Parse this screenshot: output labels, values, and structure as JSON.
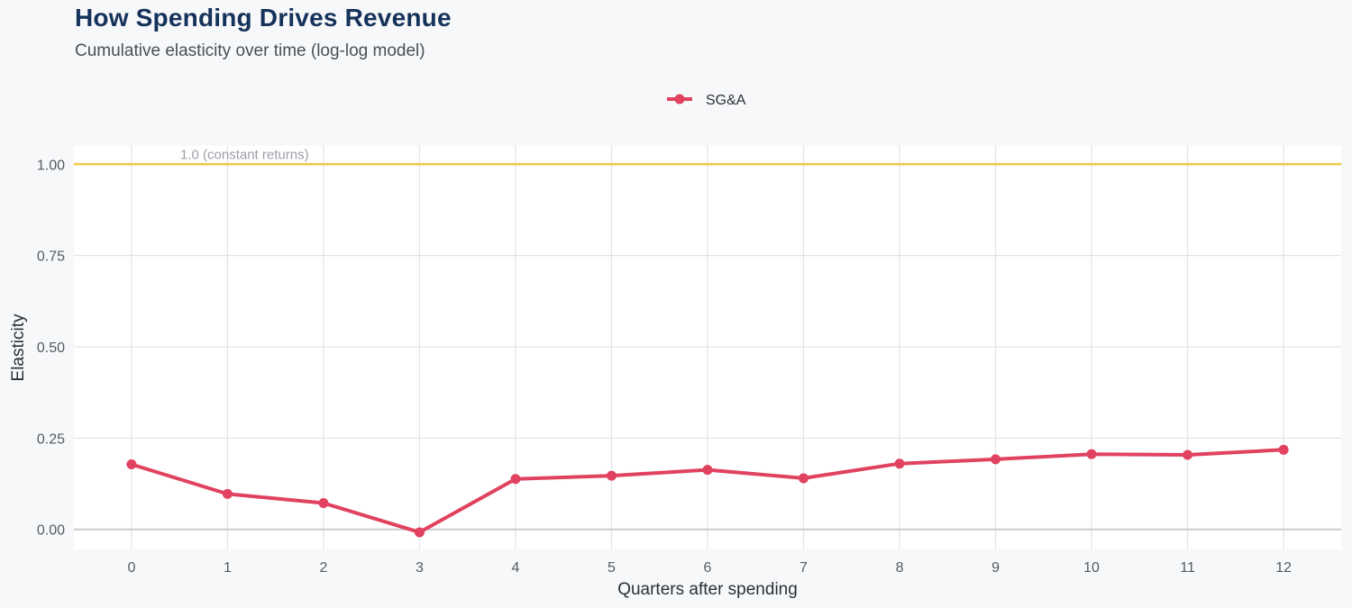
{
  "header": {
    "title": "How Spending Drives Revenue",
    "subtitle": "Cumulative elasticity over time (log-log model)"
  },
  "colors": {
    "series": "#e0425f",
    "reference": "#f2c94c",
    "title": "#15325a"
  },
  "chart_data": {
    "type": "line",
    "title": "How Spending Drives Revenue",
    "subtitle": "Cumulative elasticity over time (log-log model)",
    "xlabel": "Quarters after spending",
    "ylabel": "Elasticity",
    "x": [
      0,
      1,
      2,
      3,
      4,
      5,
      6,
      7,
      8,
      9,
      10,
      11,
      12
    ],
    "x_tick_labels": [
      "0",
      "1",
      "2",
      "3",
      "4",
      "5",
      "6",
      "7",
      "8",
      "9",
      "10",
      "11",
      "12"
    ],
    "y_ticks": [
      0.0,
      0.25,
      0.5,
      0.75,
      1.0
    ],
    "y_tick_labels": [
      "0.00",
      "0.25",
      "0.50",
      "0.75",
      "1.00"
    ],
    "ylim": [
      -0.055,
      1.05
    ],
    "xlim": [
      -0.6,
      12.6
    ],
    "grid": true,
    "legend_position": "top-center",
    "series": [
      {
        "name": "SG&A",
        "values": [
          0.178,
          0.097,
          0.072,
          -0.008,
          0.138,
          0.147,
          0.163,
          0.14,
          0.18,
          0.192,
          0.206,
          0.204,
          0.218
        ]
      }
    ],
    "reference_lines": [
      {
        "y": 1.0,
        "label": "1.0 (constant returns)"
      }
    ]
  }
}
